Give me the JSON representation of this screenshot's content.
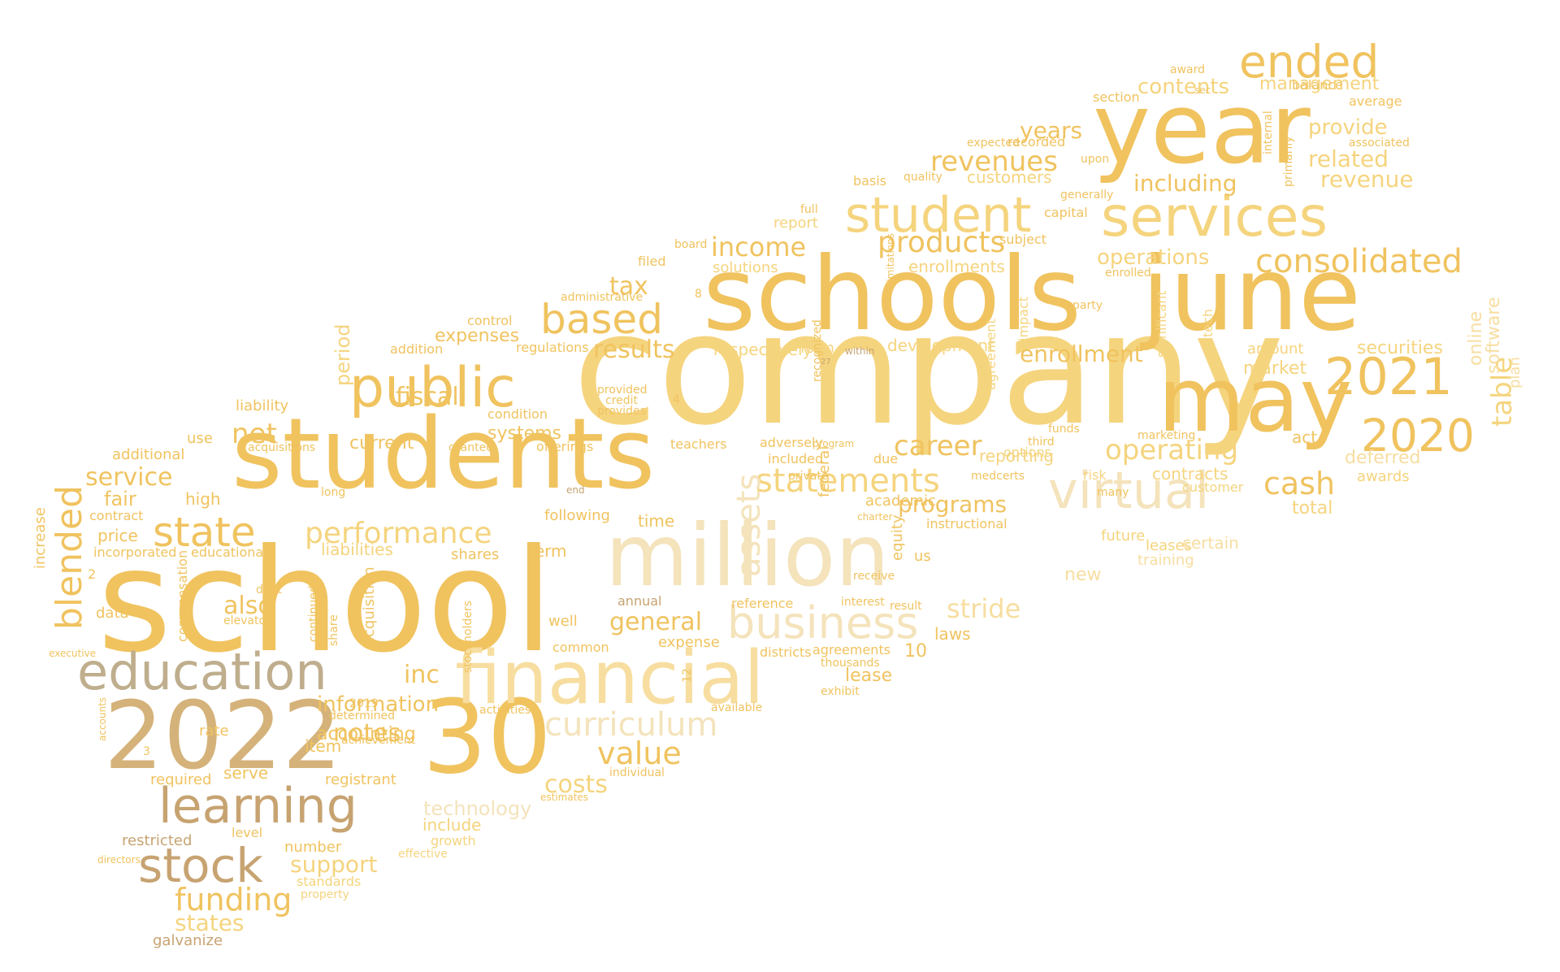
{
  "palette": {
    "gold": "#f0c35f",
    "light-gold": "#f5d47e",
    "pale-gold": "#f7dea0",
    "pale": "#f4e3bb",
    "tan": "#d4b27a",
    "brown-tan": "#c7a371",
    "khaki": "#bfae8d"
  },
  "words": [
    {
      "text": "company",
      "color": "light-gold"
    },
    {
      "text": "school",
      "color": "gold"
    },
    {
      "text": "schools",
      "color": "gold"
    },
    {
      "text": "june",
      "color": "gold"
    },
    {
      "text": "students",
      "color": "gold"
    },
    {
      "text": "may",
      "color": "gold"
    },
    {
      "text": "year",
      "color": "gold"
    },
    {
      "text": "million",
      "color": "pale"
    },
    {
      "text": "2022",
      "color": "tan"
    },
    {
      "text": "30",
      "color": "gold"
    },
    {
      "text": "financial",
      "color": "pale-gold"
    },
    {
      "text": "services",
      "color": "light-gold"
    },
    {
      "text": "education",
      "color": "khaki"
    },
    {
      "text": "learning",
      "color": "brown-tan"
    },
    {
      "text": "public",
      "color": "gold"
    },
    {
      "text": "student",
      "color": "light-gold"
    },
    {
      "text": "stock",
      "color": "brown-tan"
    },
    {
      "text": "virtual",
      "color": "pale"
    },
    {
      "text": "ended",
      "color": "gold"
    },
    {
      "text": "2021",
      "color": "gold"
    },
    {
      "text": "2020",
      "color": "gold"
    },
    {
      "text": "business",
      "color": "pale"
    },
    {
      "text": "consolidated",
      "color": "gold"
    },
    {
      "text": "curriculum",
      "color": "pale"
    },
    {
      "text": "based",
      "color": "gold"
    },
    {
      "text": "performance",
      "color": "light-gold"
    },
    {
      "text": "state",
      "color": "gold"
    },
    {
      "text": "blended",
      "color": "gold"
    },
    {
      "text": "statements",
      "color": "light-gold"
    },
    {
      "text": "assets",
      "color": "pale"
    },
    {
      "text": "funding",
      "color": "gold"
    },
    {
      "text": "revenues",
      "color": "gold"
    },
    {
      "text": "products",
      "color": "gold"
    },
    {
      "text": "income",
      "color": "gold"
    },
    {
      "text": "value",
      "color": "gold"
    },
    {
      "text": "cash",
      "color": "gold"
    },
    {
      "text": "career",
      "color": "gold"
    },
    {
      "text": "stride",
      "color": "pale-gold"
    },
    {
      "text": "operating",
      "color": "light-gold"
    },
    {
      "text": "including",
      "color": "gold"
    },
    {
      "text": "contents",
      "color": "light-gold"
    },
    {
      "text": "management",
      "color": "light-gold"
    },
    {
      "text": "provide",
      "color": "light-gold"
    },
    {
      "text": "related",
      "color": "light-gold"
    },
    {
      "text": "revenue",
      "color": "light-gold"
    },
    {
      "text": "operations",
      "color": "light-gold"
    },
    {
      "text": "years",
      "color": "gold"
    },
    {
      "text": "enrollment",
      "color": "gold"
    },
    {
      "text": "results",
      "color": "gold"
    },
    {
      "text": "net",
      "color": "gold"
    },
    {
      "text": "tax",
      "color": "gold"
    },
    {
      "text": "table",
      "color": "light-gold"
    },
    {
      "text": "general",
      "color": "gold"
    },
    {
      "text": "costs",
      "color": "light-gold"
    },
    {
      "text": "also",
      "color": "gold"
    },
    {
      "text": "fiscal",
      "color": "gold"
    },
    {
      "text": "service",
      "color": "gold"
    },
    {
      "text": "inc",
      "color": "gold"
    },
    {
      "text": "notes",
      "color": "gold"
    },
    {
      "text": "information",
      "color": "gold"
    },
    {
      "text": "support",
      "color": "light-gold"
    },
    {
      "text": "states",
      "color": "light-gold"
    },
    {
      "text": "technology",
      "color": "pale"
    },
    {
      "text": "programs",
      "color": "gold"
    },
    {
      "text": "period",
      "color": "light-gold"
    },
    {
      "text": "securities",
      "color": "light-gold"
    },
    {
      "text": "deferred",
      "color": "pale-gold"
    },
    {
      "text": "total",
      "color": "light-gold"
    },
    {
      "text": "online",
      "color": "pale-gold"
    },
    {
      "text": "software",
      "color": "pale-gold"
    },
    {
      "text": "galvanize",
      "color": "brown-tan"
    },
    {
      "text": "liabilities",
      "color": "light-gold"
    },
    {
      "text": "development",
      "color": "light-gold"
    },
    {
      "text": "enrollments",
      "color": "light-gold"
    },
    {
      "text": "customers",
      "color": "light-gold"
    },
    {
      "text": "solutions",
      "color": "light-gold"
    },
    {
      "text": "report",
      "color": "light-gold"
    },
    {
      "text": "market",
      "color": "light-gold"
    },
    {
      "text": "amount",
      "color": "light-gold"
    },
    {
      "text": "expenses",
      "color": "gold"
    },
    {
      "text": "systems",
      "color": "gold"
    },
    {
      "text": "current",
      "color": "gold"
    },
    {
      "text": "reporting",
      "color": "light-gold"
    },
    {
      "text": "contracts",
      "color": "light-gold"
    },
    {
      "text": "respectively",
      "color": "light-gold"
    },
    {
      "text": "form",
      "color": "light-gold"
    },
    {
      "text": "laws",
      "color": "gold"
    },
    {
      "text": "lease",
      "color": "gold"
    },
    {
      "text": "new",
      "color": "pale-gold"
    },
    {
      "text": "leases",
      "color": "light-gold"
    },
    {
      "text": "certain",
      "color": "pale-gold"
    },
    {
      "text": "training",
      "color": "pale-gold"
    },
    {
      "text": "future",
      "color": "light-gold"
    },
    {
      "text": "customer",
      "color": "light-gold"
    },
    {
      "text": "awards",
      "color": "light-gold"
    },
    {
      "text": "plan",
      "color": "pale-gold"
    },
    {
      "text": "act",
      "color": "gold"
    },
    {
      "text": "fair",
      "color": "gold"
    },
    {
      "text": "price",
      "color": "gold"
    },
    {
      "text": "high",
      "color": "gold"
    },
    {
      "text": "contract",
      "color": "gold"
    },
    {
      "text": "additional",
      "color": "gold"
    },
    {
      "text": "use",
      "color": "gold"
    },
    {
      "text": "liability",
      "color": "gold"
    },
    {
      "text": "accounting",
      "color": "gold"
    },
    {
      "text": "increase",
      "color": "gold"
    },
    {
      "text": "compensation",
      "color": "gold"
    },
    {
      "text": "acquisition",
      "color": "gold"
    },
    {
      "text": "item",
      "color": "gold"
    },
    {
      "text": "rate",
      "color": "gold"
    },
    {
      "text": "serve",
      "color": "gold"
    },
    {
      "text": "required",
      "color": "gold"
    },
    {
      "text": "registrant",
      "color": "gold"
    },
    {
      "text": "restricted",
      "color": "brown-tan"
    },
    {
      "text": "number",
      "color": "gold"
    },
    {
      "text": "level",
      "color": "gold"
    },
    {
      "text": "standards",
      "color": "light-gold"
    },
    {
      "text": "include",
      "color": "light-gold"
    },
    {
      "text": "growth",
      "color": "light-gold"
    },
    {
      "text": "effective",
      "color": "light-gold"
    },
    {
      "text": "property",
      "color": "light-gold"
    },
    {
      "text": "time",
      "color": "gold"
    },
    {
      "text": "term",
      "color": "gold"
    },
    {
      "text": "shares",
      "color": "gold"
    },
    {
      "text": "following",
      "color": "gold"
    },
    {
      "text": "academic",
      "color": "gold"
    },
    {
      "text": "equity",
      "color": "gold"
    },
    {
      "text": "instructional",
      "color": "gold"
    },
    {
      "text": "expense",
      "color": "gold"
    },
    {
      "text": "annual",
      "color": "brown-tan"
    },
    {
      "text": "well",
      "color": "gold"
    },
    {
      "text": "common",
      "color": "gold"
    },
    {
      "text": "teachers",
      "color": "gold"
    },
    {
      "text": "included",
      "color": "gold"
    },
    {
      "text": "adversely",
      "color": "gold"
    },
    {
      "text": "agreements",
      "color": "gold"
    },
    {
      "text": "thousands",
      "color": "gold"
    },
    {
      "text": "exhibit",
      "color": "gold"
    },
    {
      "text": "federal",
      "color": "gold"
    },
    {
      "text": "reference",
      "color": "gold"
    },
    {
      "text": "available",
      "color": "gold"
    },
    {
      "text": "activities",
      "color": "gold"
    },
    {
      "text": "due",
      "color": "gold"
    },
    {
      "text": "options",
      "color": "light-gold"
    },
    {
      "text": "risk",
      "color": "light-gold"
    },
    {
      "text": "impact",
      "color": "light-gold"
    },
    {
      "text": "agreement",
      "color": "light-gold"
    },
    {
      "text": "significant",
      "color": "light-gold"
    },
    {
      "text": "tech",
      "color": "light-gold"
    },
    {
      "text": "control",
      "color": "gold"
    },
    {
      "text": "addition",
      "color": "gold"
    },
    {
      "text": "regulations",
      "color": "gold"
    },
    {
      "text": "condition",
      "color": "gold"
    },
    {
      "text": "offerings",
      "color": "gold"
    },
    {
      "text": "granted",
      "color": "gold"
    },
    {
      "text": "administrative",
      "color": "gold"
    },
    {
      "text": "filed",
      "color": "gold"
    },
    {
      "text": "board",
      "color": "gold"
    },
    {
      "text": "basis",
      "color": "gold"
    },
    {
      "text": "quality",
      "color": "gold"
    },
    {
      "text": "section",
      "color": "gold"
    },
    {
      "text": "balance",
      "color": "gold"
    },
    {
      "text": "average",
      "color": "gold"
    },
    {
      "text": "recorded",
      "color": "gold"
    },
    {
      "text": "subject",
      "color": "gold"
    },
    {
      "text": "capital",
      "color": "gold"
    },
    {
      "text": "upon",
      "color": "gold"
    },
    {
      "text": "generally",
      "color": "gold"
    },
    {
      "text": "enrolled",
      "color": "gold"
    },
    {
      "text": "associated",
      "color": "gold"
    },
    {
      "text": "internal",
      "color": "gold"
    },
    {
      "text": "primarily",
      "color": "gold"
    },
    {
      "text": "award",
      "color": "gold"
    },
    {
      "text": "sec",
      "color": "gold"
    },
    {
      "text": "expected",
      "color": "gold"
    },
    {
      "text": "full",
      "color": "gold"
    },
    {
      "text": "limitations",
      "color": "gold"
    },
    {
      "text": "directors",
      "color": "gold"
    },
    {
      "text": "data",
      "color": "gold"
    },
    {
      "text": "incorporated",
      "color": "gold"
    },
    {
      "text": "educational",
      "color": "gold"
    },
    {
      "text": "elevator",
      "color": "gold"
    },
    {
      "text": "debt",
      "color": "gold"
    },
    {
      "text": "acquisitions",
      "color": "gold"
    },
    {
      "text": "continued",
      "color": "gold"
    },
    {
      "text": "share",
      "color": "gold"
    },
    {
      "text": "long",
      "color": "gold"
    },
    {
      "text": "determined",
      "color": "gold"
    },
    {
      "text": "achievement",
      "color": "gold"
    },
    {
      "text": "2019",
      "color": "gold"
    },
    {
      "text": "stockholders",
      "color": "gold"
    },
    {
      "text": "us",
      "color": "gold"
    },
    {
      "text": "interest",
      "color": "gold"
    },
    {
      "text": "result",
      "color": "gold"
    },
    {
      "text": "receive",
      "color": "gold"
    },
    {
      "text": "private",
      "color": "gold"
    },
    {
      "text": "program",
      "color": "gold"
    },
    {
      "text": "recognized",
      "color": "gold"
    },
    {
      "text": "charter",
      "color": "gold"
    },
    {
      "text": "districts",
      "color": "gold"
    },
    {
      "text": "individual",
      "color": "gold"
    },
    {
      "text": "estimates",
      "color": "gold"
    },
    {
      "text": "executive",
      "color": "gold"
    },
    {
      "text": "accounts",
      "color": "gold"
    },
    {
      "text": "provided",
      "color": "gold"
    },
    {
      "text": "credit",
      "color": "gold"
    },
    {
      "text": "provides",
      "color": "gold"
    },
    {
      "text": "marketing",
      "color": "gold"
    },
    {
      "text": "party",
      "color": "gold"
    },
    {
      "text": "many",
      "color": "gold"
    },
    {
      "text": "medcerts",
      "color": "gold"
    },
    {
      "text": "third",
      "color": "gold"
    },
    {
      "text": "funds",
      "color": "gold"
    },
    {
      "text": "within",
      "color": "brown-tan"
    },
    {
      "text": "end",
      "color": "brown-tan"
    },
    {
      "text": "10",
      "color": "gold"
    },
    {
      "text": "12",
      "color": "gold"
    },
    {
      "text": "2",
      "color": "gold"
    },
    {
      "text": "3",
      "color": "gold"
    },
    {
      "text": "4",
      "color": "gold"
    },
    {
      "text": "8",
      "color": "gold"
    },
    {
      "text": "27",
      "color": "brown-tan"
    }
  ]
}
